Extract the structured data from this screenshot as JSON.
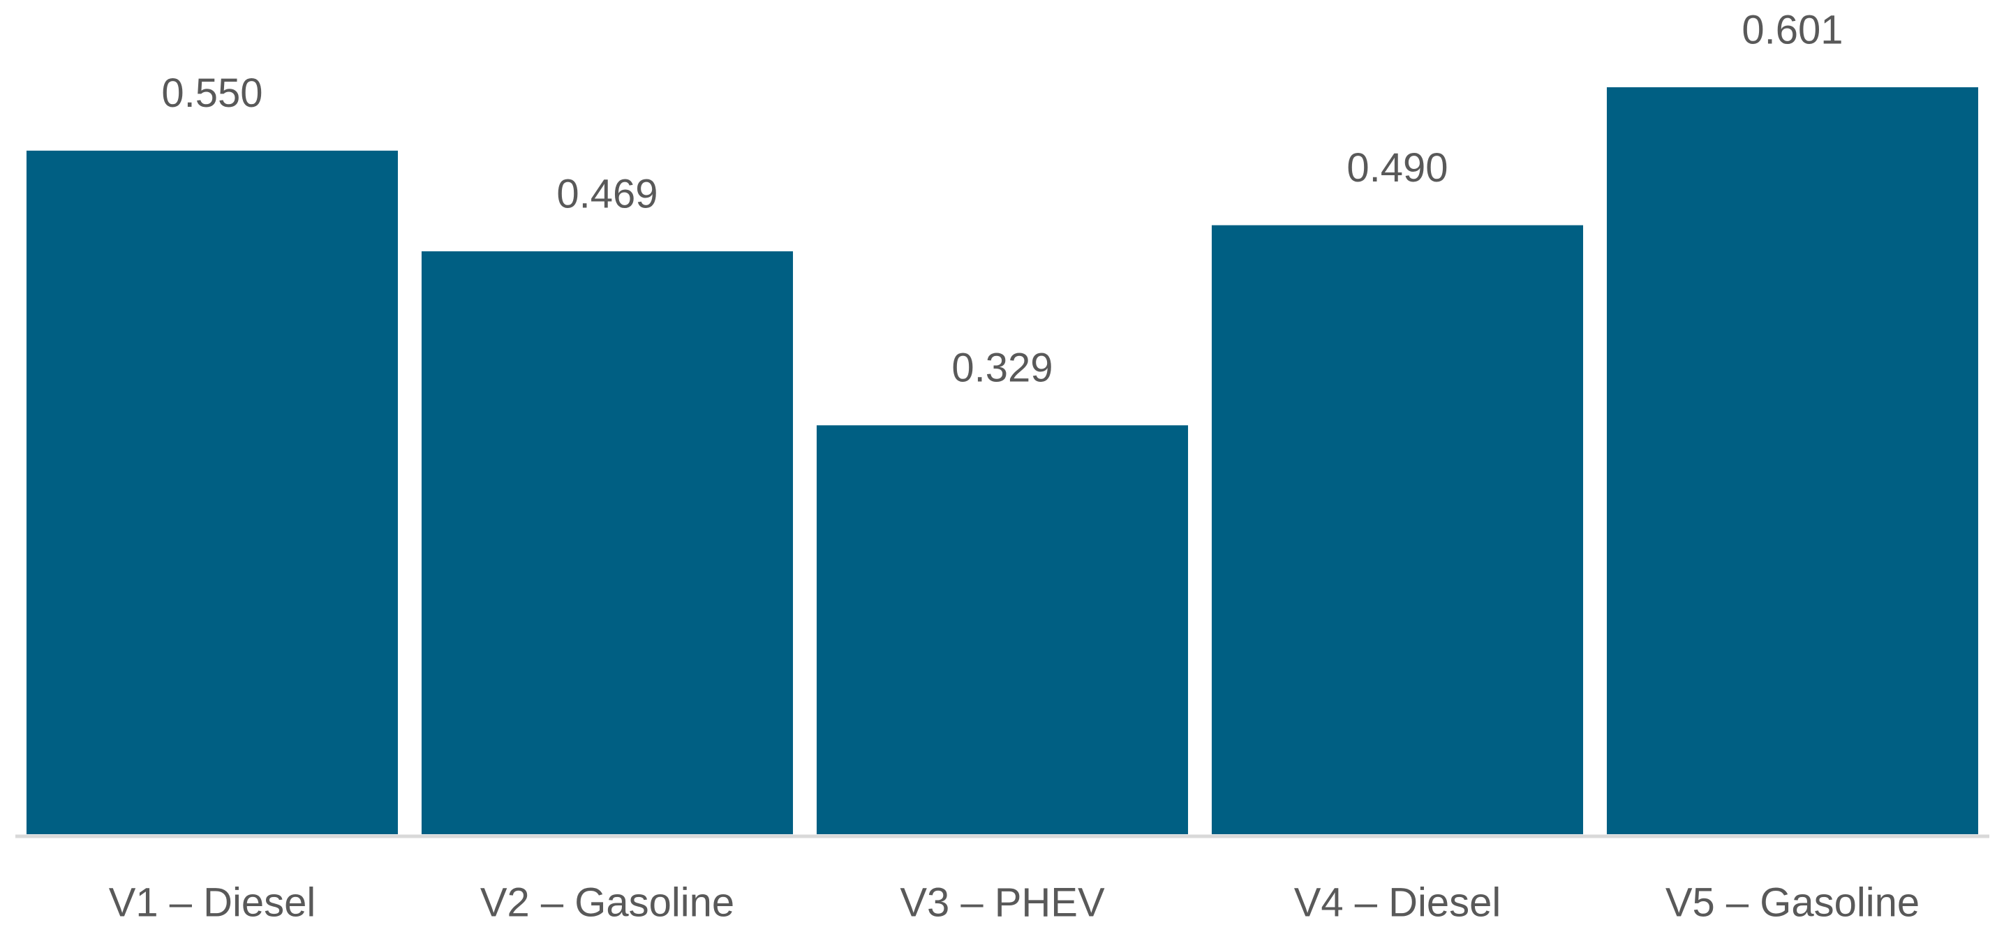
{
  "chart_data": {
    "type": "bar",
    "categories": [
      "V1 – Diesel",
      "V2 – Gasoline",
      "V3 – PHEV",
      "V4 – Diesel",
      "V5 – Gasoline"
    ],
    "values": [
      0.55,
      0.469,
      0.329,
      0.49,
      0.601
    ],
    "value_labels": [
      "0.550",
      "0.469",
      "0.329",
      "0.490",
      "0.601"
    ],
    "color": "#005f83"
  }
}
